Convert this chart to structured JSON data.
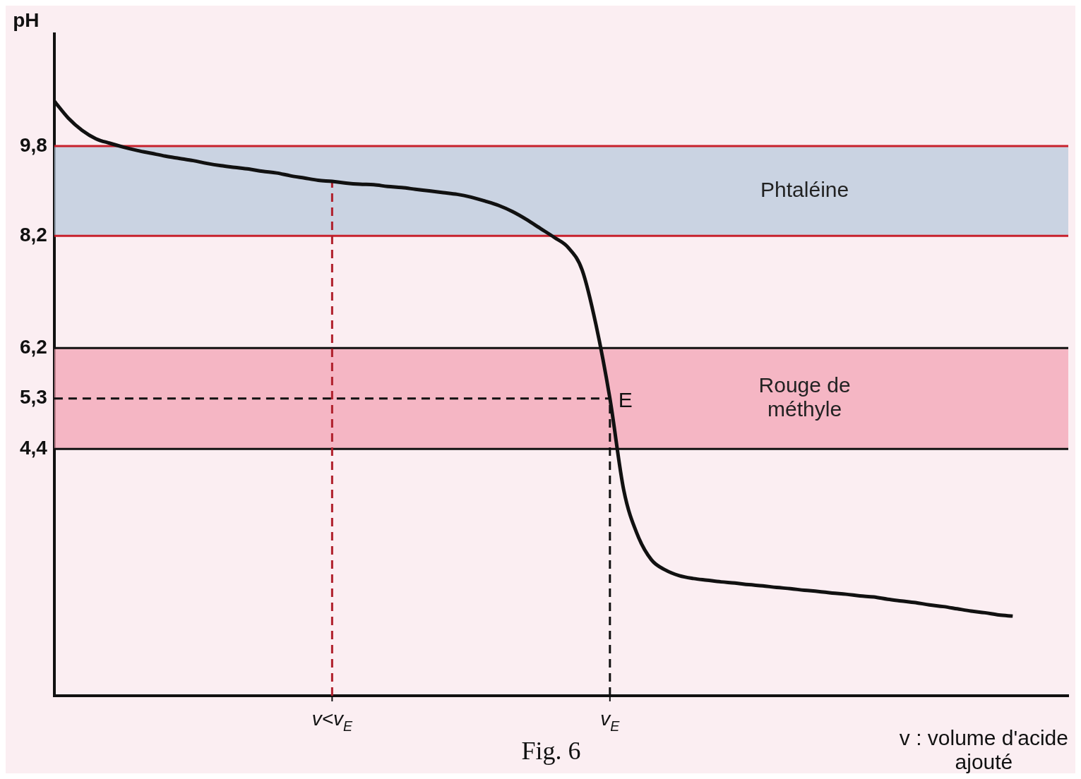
{
  "chart_data": {
    "type": "line",
    "ylabel": "pH",
    "xlabel": "v : volume d'acide ajouté",
    "categories": [
      null,
      null,
      null,
      null,
      null,
      null,
      null,
      null,
      null,
      null,
      null,
      null,
      null,
      null,
      null,
      null,
      null,
      null,
      null,
      null,
      "v<v$_{E}$",
      null,
      null,
      null,
      null,
      null,
      null,
      null,
      null,
      null,
      null,
      null,
      null,
      null,
      null,
      null,
      null,
      null,
      null,
      null,
      "v$_{E}$",
      null,
      null,
      null,
      null,
      null,
      null,
      null,
      null,
      null,
      null,
      null,
      null,
      null,
      null,
      null,
      null,
      null,
      null,
      null,
      null,
      null,
      null,
      null,
      null,
      null,
      null,
      null,
      null,
      null,
      null,
      null,
      null,
      null
    ],
    "series": [
      {
        "color": "#111111",
        "values": [
          10.6,
          10.3,
          10.08,
          9.93,
          9.85,
          9.78,
          9.72,
          9.67,
          9.62,
          9.58,
          9.54,
          9.49,
          9.45,
          9.42,
          9.39,
          9.35,
          9.32,
          9.27,
          9.23,
          9.19,
          9.17,
          9.14,
          9.12,
          9.11,
          9.08,
          9.06,
          9.03,
          9.0,
          8.97,
          8.94,
          8.89,
          8.82,
          8.74,
          8.63,
          8.49,
          8.33,
          8.17,
          7.99,
          7.59,
          6.61,
          5.3,
          3.66,
          2.86,
          2.42,
          2.24,
          2.14,
          2.09,
          2.06,
          2.03,
          2.01,
          1.98,
          1.96,
          1.93,
          1.91,
          1.88,
          1.86,
          1.83,
          1.81,
          1.78,
          1.76,
          1.72,
          1.69,
          1.66,
          1.62,
          1.59,
          1.55,
          1.51,
          1.48,
          1.44,
          1.42,
          null,
          null,
          null,
          null
        ]
      }
    ],
    "ylim": [
      0,
      11.8
    ],
    "yticks": [
      {
        "value": 4.4,
        "label": "4,4"
      },
      {
        "value": 5.3,
        "label": "5,3"
      },
      {
        "value": 6.2,
        "label": "6,2"
      },
      {
        "value": 8.2,
        "label": "8,2"
      },
      {
        "value": 9.8,
        "label": "9,8"
      }
    ],
    "bands": [
      {
        "axis": "y",
        "from": 8.2,
        "to": 9.8,
        "label": "Phtaléine",
        "color": "#b9c9dc"
      },
      {
        "axis": "y",
        "from": 4.4,
        "to": 6.2,
        "label": "Rouge de méthyle",
        "color": "#f3a3b4"
      }
    ],
    "ref_lines": [
      {
        "axis": "y",
        "value": 9.8,
        "color": "#c8202c"
      },
      {
        "axis": "y",
        "value": 8.2,
        "color": "#c8202c"
      },
      {
        "axis": "y",
        "value": 6.2,
        "color": "#111111"
      },
      {
        "axis": "y",
        "value": 4.4,
        "color": "#111111"
      },
      {
        "axis": "y",
        "value": 5.3,
        "color": "#111111",
        "line_style": "dashed"
      },
      {
        "axis": "x",
        "value": "v<v$_{E}$",
        "color": "#b0202c",
        "line_style": "dashed"
      },
      {
        "axis": "x",
        "value": "v$_{E}$",
        "color": "#111111",
        "line_style": "dashed"
      }
    ],
    "annotations": [
      {
        "text": "E",
        "x": "v$_{E}$",
        "y": 5.3
      },
      "Fig. 6"
    ],
    "grid": false,
    "legend": false,
    "marker": "none",
    "line_style": "solid"
  }
}
